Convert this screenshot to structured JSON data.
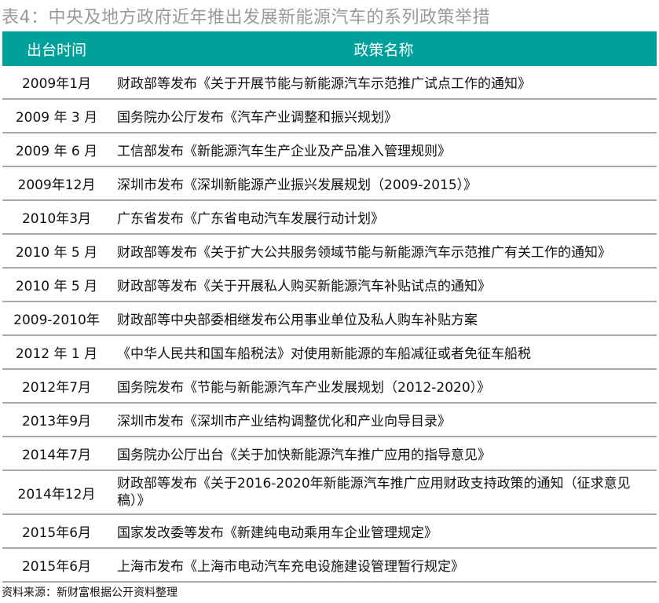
{
  "title": "表4：中央及地方政府近年推出发展新能源汽车的系列政策举措",
  "colors": {
    "header_bg": "#00a19a",
    "header_text": "#ffffff",
    "title_text": "#9a9a9a"
  },
  "table": {
    "headers": [
      "出台时间",
      "政策名称"
    ],
    "rows": [
      {
        "date": "2009年1月",
        "policy": "财政部等发布《关于开展节能与新能源汽车示范推广试点工作的通知》"
      },
      {
        "date": "2009 年 3 月",
        "policy": "国务院办公厅发布《汽车产业调整和振兴规划》"
      },
      {
        "date": "2009 年 6 月",
        "policy": "工信部发布《新能源汽车生产企业及产品准入管理规则》"
      },
      {
        "date": "2009年12月",
        "policy": "深圳市发布《深圳新能源产业振兴发展规划（2009-2015）》"
      },
      {
        "date": "2010年3月",
        "policy": "广东省发布《广东省电动汽车发展行动计划》"
      },
      {
        "date": "2010 年 5 月",
        "policy": "财政部等发布《关于扩大公共服务领域节能与新能源汽车示范推广有关工作的通知》"
      },
      {
        "date": "2010 年 5 月",
        "policy": "财政部等发布《关于开展私人购买新能源汽车补贴试点的通知》"
      },
      {
        "date": "2009-2010年",
        "policy": "财政部等中央部委相继发布公用事业单位及私人购车补贴方案"
      },
      {
        "date": "2012 年 1 月",
        "policy": "《中华人民共和国车船税法》对使用新能源的车船减征或者免征车船税"
      },
      {
        "date": "2012年7月",
        "policy": "国务院发布《节能与新能源汽车产业发展规划（2012-2020）》"
      },
      {
        "date": "2013年9月",
        "policy": "深圳市发布《深圳市产业结构调整优化和产业向导目录》"
      },
      {
        "date": "2014年7月",
        "policy": "国务院办公厅出台《关于加快新能源汽车推广应用的指导意见》"
      },
      {
        "date": "2014年12月",
        "policy": "财政部等发布《关于2016-2020年新能源汽车推广应用财政支持政策的通知（征求意见稿）》"
      },
      {
        "date": "2015年6月",
        "policy": "国家发改委等发布《新建纯电动乘用车企业管理规定》"
      },
      {
        "date": "2015年6月",
        "policy": "上海市发布《上海市电动汽车充电设施建设管理暂行规定》"
      }
    ]
  },
  "source": "资料来源：新财富根据公开资料整理"
}
